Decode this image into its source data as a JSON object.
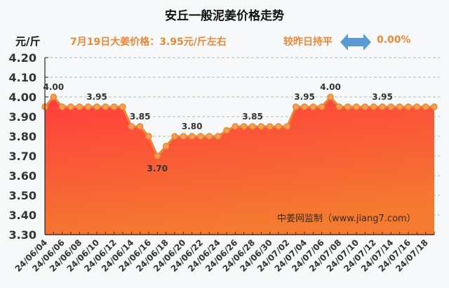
{
  "header": {
    "title": "安丘一般泥姜价格走势",
    "unit": "元/斤",
    "price_info": "7月19日大姜价格：3.95元/斤左右",
    "compare_text": "较昨日持平",
    "compare_icon": "double-arrow-icon",
    "change_pct": "0.00%"
  },
  "watermark": "中姜网监制（www.jiang7.com）",
  "colors": {
    "text_orange": "#e8893a",
    "arrow_blue": "#5b9bd5",
    "line": "#e8893a",
    "area_top": "#ff3d3d",
    "area_bottom": "#f47a30",
    "grid": "#9aa69a"
  },
  "chart_data": {
    "type": "area",
    "title": "安丘一般泥姜价格走势",
    "xlabel": "",
    "ylabel": "元/斤",
    "ylim": [
      3.3,
      4.2
    ],
    "yticks": [
      "4.20",
      "4.10",
      "4.00",
      "3.90",
      "3.80",
      "3.70",
      "3.60",
      "3.50",
      "3.40",
      "3.30"
    ],
    "grid": "dashed horizontal",
    "x": [
      "24/06/04",
      "24/06/05",
      "24/06/06",
      "24/06/07",
      "24/06/08",
      "24/06/09",
      "24/06/10",
      "24/06/11",
      "24/06/12",
      "24/06/13",
      "24/06/14",
      "24/06/15",
      "24/06/16",
      "24/06/17",
      "24/06/18",
      "24/06/19",
      "24/06/20",
      "24/06/21",
      "24/06/22",
      "24/06/23",
      "24/06/24",
      "24/06/25",
      "24/06/26",
      "24/06/27",
      "24/06/28",
      "24/06/29",
      "24/06/30",
      "24/07/01",
      "24/07/02",
      "24/07/03",
      "24/07/04",
      "24/07/05",
      "24/07/06",
      "24/07/07",
      "24/07/08",
      "24/07/09",
      "24/07/10",
      "24/07/11",
      "24/07/12",
      "24/07/13",
      "24/07/14",
      "24/07/15",
      "24/07/16",
      "24/07/17",
      "24/07/18",
      "24/07/19"
    ],
    "xtick_labels": [
      "24/06/04",
      "24/06/06",
      "24/06/08",
      "24/06/10",
      "24/06/12",
      "24/06/14",
      "24/06/16",
      "24/06/18",
      "24/06/20",
      "24/06/22",
      "24/06/24",
      "24/06/26",
      "24/06/28",
      "24/06/30",
      "24/07/02",
      "24/07/04",
      "24/07/06",
      "24/07/08",
      "24/07/10",
      "24/07/12",
      "24/07/14",
      "24/07/16",
      "24/07/18"
    ],
    "series": [
      {
        "name": "价格",
        "values": [
          3.95,
          4.0,
          3.95,
          3.95,
          3.95,
          3.95,
          3.95,
          3.95,
          3.95,
          3.95,
          3.85,
          3.85,
          3.8,
          3.7,
          3.75,
          3.8,
          3.8,
          3.8,
          3.8,
          3.8,
          3.8,
          3.83,
          3.85,
          3.85,
          3.85,
          3.85,
          3.85,
          3.85,
          3.85,
          3.95,
          3.95,
          3.95,
          3.95,
          4.0,
          3.95,
          3.95,
          3.95,
          3.95,
          3.95,
          3.95,
          3.95,
          3.95,
          3.95,
          3.95,
          3.95,
          3.95
        ]
      }
    ],
    "annotations": [
      {
        "index": 1,
        "label": "4.00",
        "pos": "above"
      },
      {
        "index": 6,
        "label": "3.95",
        "pos": "above"
      },
      {
        "index": 11,
        "label": "3.85",
        "pos": "above"
      },
      {
        "index": 13,
        "label": "3.70",
        "pos": "below"
      },
      {
        "index": 17,
        "label": "3.80",
        "pos": "above"
      },
      {
        "index": 24,
        "label": "3.85",
        "pos": "above"
      },
      {
        "index": 30,
        "label": "3.95",
        "pos": "above"
      },
      {
        "index": 33,
        "label": "4.00",
        "pos": "above"
      },
      {
        "index": 39,
        "label": "3.95",
        "pos": "above"
      }
    ]
  }
}
